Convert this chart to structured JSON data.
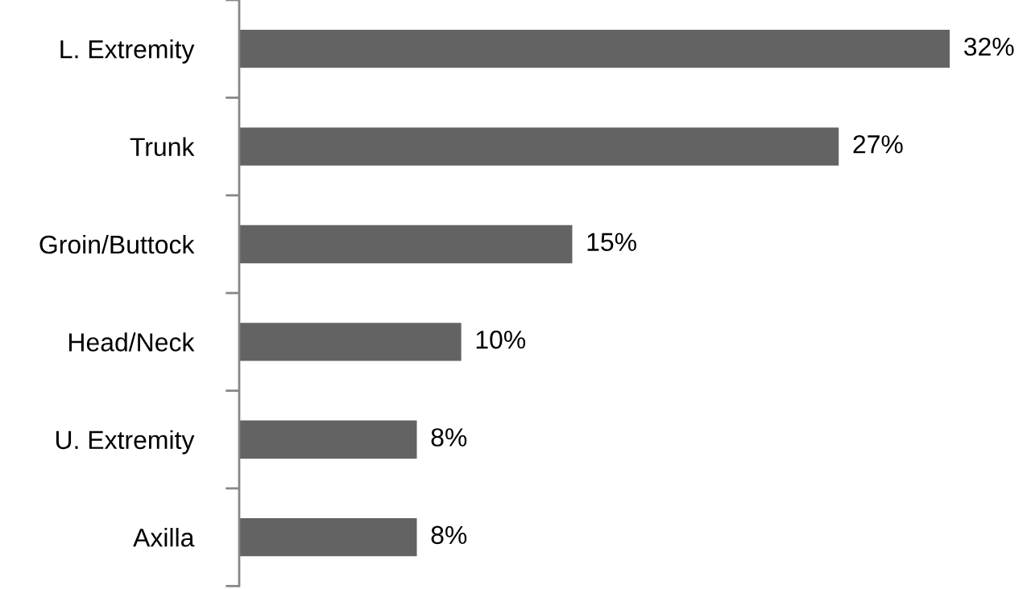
{
  "chart_data": {
    "type": "bar",
    "orientation": "horizontal",
    "categories": [
      "L. Extremity",
      "Trunk",
      "Groin/Buttock",
      "Head/Neck",
      "U. Extremity",
      "Axilla"
    ],
    "values": [
      32,
      27,
      15,
      10,
      8,
      8
    ],
    "value_labels": [
      "32%",
      "27%",
      "15%",
      "10%",
      "8%",
      "8%"
    ],
    "color": "#636363"
  }
}
